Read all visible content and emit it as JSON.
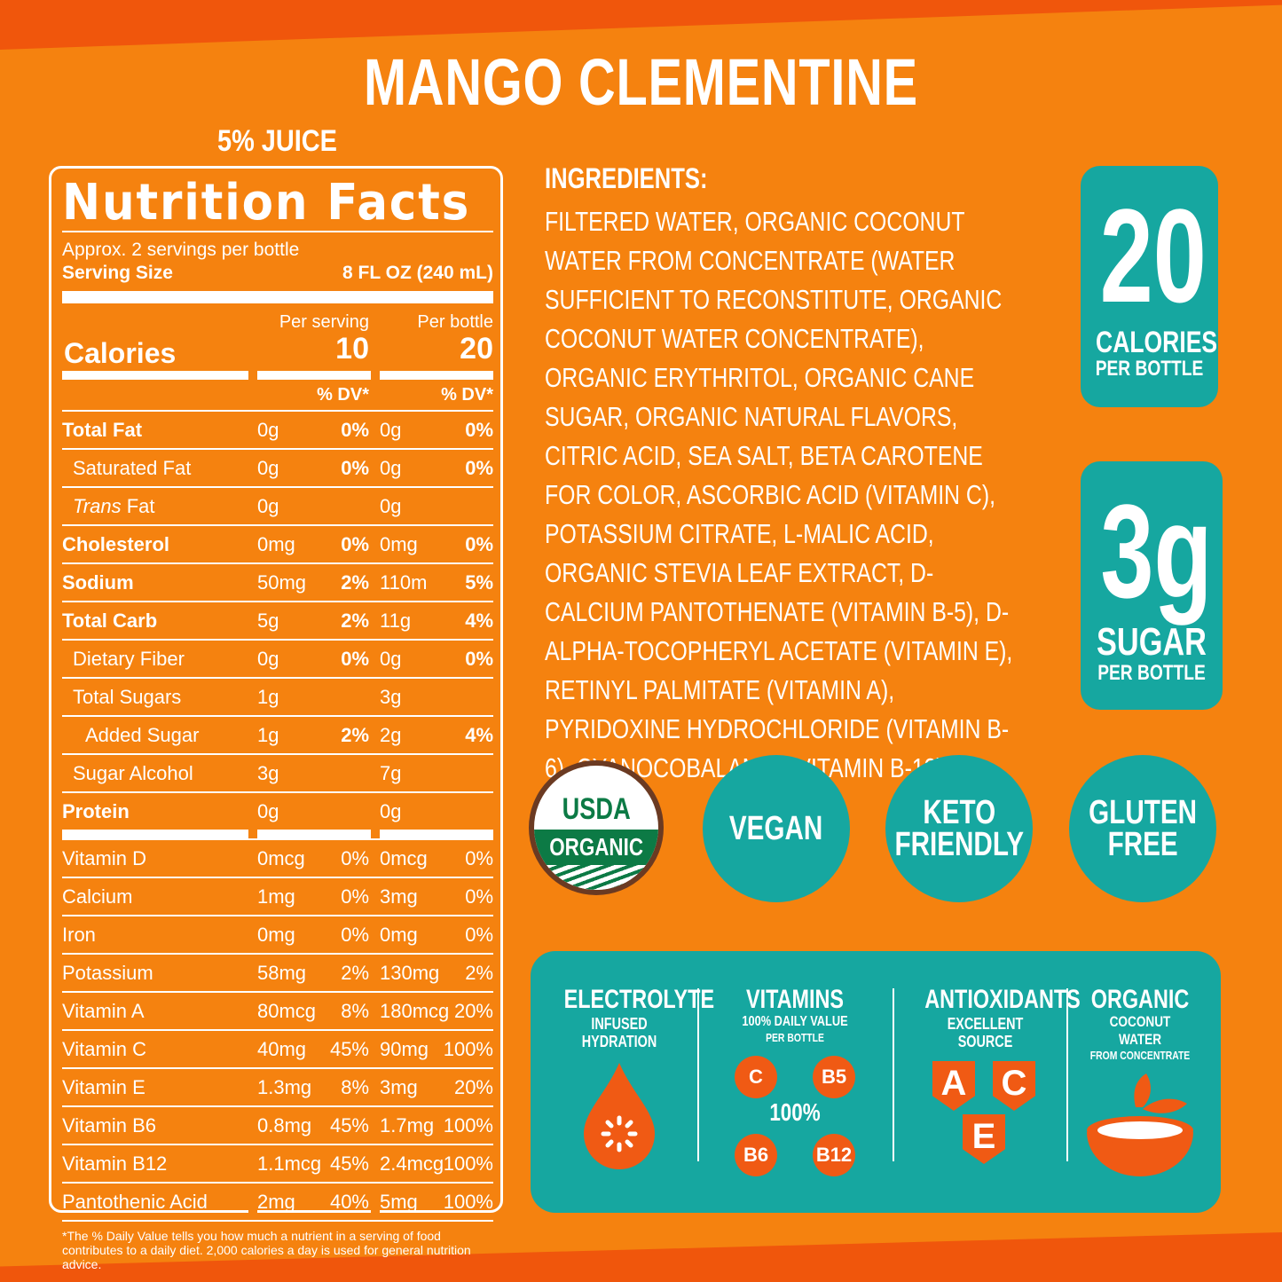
{
  "title": "MANGO CLEMENTINE",
  "juice": "5% JUICE",
  "nutrition": {
    "heading": "Nutrition Facts",
    "servings": "Approx. 2 servings per bottle",
    "serving_size_label": "Serving Size",
    "serving_size_value": "8 FL OZ (240 mL)",
    "per_serving": "Per serving",
    "per_bottle": "Per bottle",
    "calories_label": "Calories",
    "calories_serving": "10",
    "calories_bottle": "20",
    "dv_label": "% DV*",
    "rows": [
      {
        "name": "Total Fat",
        "a": "0g",
        "ap": "0%",
        "b": "0g",
        "bp": "0%"
      },
      {
        "name": "Saturated Fat",
        "a": "0g",
        "ap": "0%",
        "b": "0g",
        "bp": "0%"
      },
      {
        "name_italic": "Trans",
        "name_rest": " Fat",
        "a": "0g",
        "ap": "",
        "b": "0g",
        "bp": ""
      },
      {
        "name": "Cholesterol",
        "a": "0mg",
        "ap": "0%",
        "b": "0mg",
        "bp": "0%"
      },
      {
        "name": "Sodium",
        "a": "50mg",
        "ap": "2%",
        "b": "110m",
        "bp": "5%"
      },
      {
        "name": "Total Carb",
        "a": "5g",
        "ap": "2%",
        "b": "11g",
        "bp": "4%"
      },
      {
        "name": "Dietary Fiber",
        "a": "0g",
        "ap": "0%",
        "b": "0g",
        "bp": "0%"
      },
      {
        "name": "Total Sugars",
        "a": "1g",
        "ap": "",
        "b": "3g",
        "bp": ""
      },
      {
        "name": "Added Sugar",
        "a": "1g",
        "ap": "2%",
        "b": "2g",
        "bp": "4%"
      },
      {
        "name": "Sugar Alcohol",
        "a": "3g",
        "ap": "",
        "b": "7g",
        "bp": ""
      },
      {
        "name": "Protein",
        "a": "0g",
        "ap": "",
        "b": "0g",
        "bp": ""
      }
    ],
    "vitamins": [
      {
        "name": "Vitamin D",
        "a": "0mcg",
        "ap": "0%",
        "b": "0mcg",
        "bp": "0%"
      },
      {
        "name": "Calcium",
        "a": "1mg",
        "ap": "0%",
        "b": "3mg",
        "bp": "0%"
      },
      {
        "name": "Iron",
        "a": "0mg",
        "ap": "0%",
        "b": "0mg",
        "bp": "0%"
      },
      {
        "name": "Potassium",
        "a": "58mg",
        "ap": "2%",
        "b": "130mg",
        "bp": "2%"
      },
      {
        "name": "Vitamin A",
        "a": "80mcg",
        "ap": "8%",
        "b": "180mcg",
        "bp": "20%"
      },
      {
        "name": "Vitamin C",
        "a": "40mg",
        "ap": "45%",
        "b": "90mg",
        "bp": "100%"
      },
      {
        "name": "Vitamin E",
        "a": "1.3mg",
        "ap": "8%",
        "b": "3mg",
        "bp": "20%"
      },
      {
        "name": "Vitamin B6",
        "a": "0.8mg",
        "ap": "45%",
        "b": "1.7mg",
        "bp": "100%"
      },
      {
        "name": "Vitamin B12",
        "a": "1.1mcg",
        "ap": "45%",
        "b": "2.4mcg",
        "bp": "100%"
      },
      {
        "name": "Pantothenic Acid",
        "a": "2mg",
        "ap": "40%",
        "b": "5mg",
        "bp": "100%"
      }
    ],
    "footnote": "*The % Daily Value tells you how much a nutrient in a serving of food contributes to a daily diet. 2,000 calories a day is used for general nutrition advice."
  },
  "ingredients": {
    "heading": "INGREDIENTS:",
    "text": "FILTERED WATER, ORGANIC COCONUT WATER FROM CONCENTRATE (WATER SUFFICIENT TO RECONSTITUTE, ORGANIC COCONUT WATER CONCENTRATE), ORGANIC ERYTHRITOL, ORGANIC CANE SUGAR, ORGANIC NATURAL FLAVORS, CITRIC ACID, SEA SALT, BETA CAROTENE FOR COLOR, ASCORBIC ACID (VITAMIN C), POTASSIUM CITRATE, L-MALIC ACID, ORGANIC STEVIA LEAF EXTRACT, D-CALCIUM PANTOTHENATE (VITAMIN B-5), D-ALPHA-TOCOPHERYL ACETATE (VITAMIN E), RETINYL PALMITATE (VITAMIN A), PYRIDOXINE HYDROCHLORIDE (VITAMIN B-6), CYANOCOBALAMIN (VITAMIN B-12)."
  },
  "calories_box": {
    "value": "20",
    "label": "CALORIES",
    "sub": "PER BOTTLE"
  },
  "sugar_box": {
    "value": "3g",
    "label": "SUGAR",
    "sub": "PER BOTTLE"
  },
  "badges": {
    "usda_top": "USDA",
    "usda_bottom": "ORGANIC",
    "vegan": "VEGAN",
    "keto_1": "KETO",
    "keto_2": "FRIENDLY",
    "gluten_1": "GLUTEN",
    "gluten_2": "FREE"
  },
  "panel": {
    "electrolyte": {
      "h": "ELECTROLYTE",
      "s1": "INFUSED",
      "s2": "HYDRATION"
    },
    "vitamins": {
      "h": "VITAMINS",
      "s1": "100% DAILY VALUE",
      "s2": "PER BOTTLE",
      "c": "C",
      "b5": "B5",
      "pct": "100%",
      "b6": "B6",
      "b12": "B12"
    },
    "antioxidants": {
      "h": "ANTIOXIDANTS",
      "s1": "EXCELLENT",
      "s2": "SOURCE",
      "a": "A",
      "c": "C",
      "e": "E"
    },
    "organic": {
      "h": "ORGANIC",
      "s1": "COCONUT WATER",
      "s2": "FROM CONCENTRATE"
    }
  },
  "colors": {
    "background": "#f5820f",
    "band": "#f0560c",
    "teal": "#16a7a0",
    "accent": "#f05a14"
  }
}
